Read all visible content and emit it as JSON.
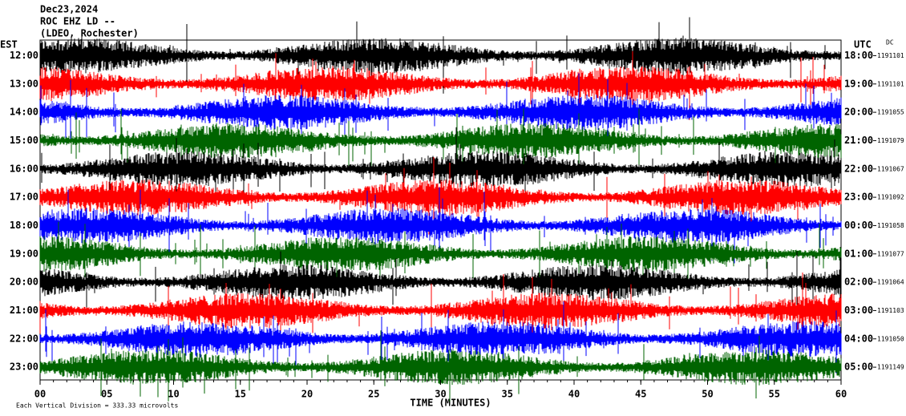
{
  "chart_data": {
    "type": "helicorder",
    "title": "Dec23,2024",
    "subtitle": "ROC EHZ LD --",
    "station": "(LDEO, Rochester)",
    "left_zone": "EST",
    "right_zone": "UTC",
    "dc_label": "DC",
    "xlabel": "TIME (MINUTES)",
    "footnote": "Each Vertical Division =  333.33 microvolts",
    "xlim": [
      0,
      60
    ],
    "xticks": [
      {
        "value": 0,
        "label": "00"
      },
      {
        "value": 5,
        "label": "05"
      },
      10,
      15,
      20,
      25,
      30,
      35,
      40,
      45,
      50,
      55,
      60
    ],
    "rows": {
      "left_labels": [
        "12:00",
        "13:00",
        "14:00",
        "15:00",
        "16:00",
        "17:00",
        "18:00",
        "19:00",
        "20:00",
        "21:00",
        "22:00",
        "23:00"
      ],
      "right_labels": [
        "18:00",
        "19:00",
        "20:00",
        "21:00",
        "22:00",
        "23:00",
        "00:00",
        "01:00",
        "02:00",
        "03:00",
        "04:00",
        "05:00"
      ],
      "dc_values": [
        1191101,
        1191101,
        1191055,
        1191079,
        1191067,
        1191092,
        1191058,
        1191077,
        1191064,
        1191103,
        1191050,
        1191149
      ],
      "colors": [
        "#000000",
        "#ff0000",
        "#0000ff",
        "#006400",
        "#000000",
        "#ff0000",
        "#0000ff",
        "#006400",
        "#000000",
        "#ff0000",
        "#0000ff",
        "#006400"
      ]
    }
  }
}
